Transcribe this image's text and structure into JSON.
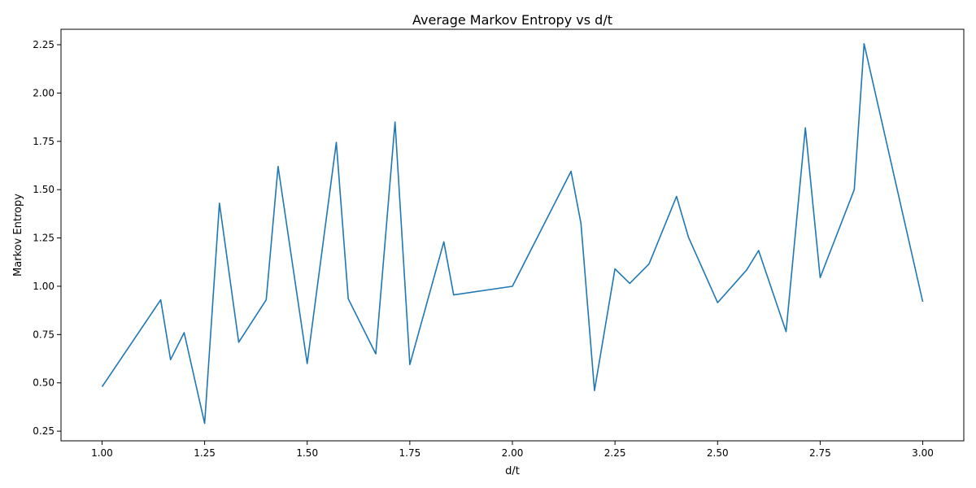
{
  "chart_data": {
    "type": "line",
    "title": "Average Markov Entropy vs d/t",
    "xlabel": "d/t",
    "ylabel": "Markov Entropy",
    "xlim": [
      0.9,
      3.1
    ],
    "ylim": [
      0.2,
      2.33
    ],
    "xticks": [
      1.0,
      1.25,
      1.5,
      1.75,
      2.0,
      2.25,
      2.5,
      2.75,
      3.0
    ],
    "xtick_labels": [
      "1.00",
      "1.25",
      "1.50",
      "1.75",
      "2.00",
      "2.25",
      "2.50",
      "2.75",
      "3.00"
    ],
    "yticks": [
      0.25,
      0.5,
      0.75,
      1.0,
      1.25,
      1.5,
      1.75,
      2.0,
      2.25
    ],
    "ytick_labels": [
      "0.25",
      "0.50",
      "0.75",
      "1.00",
      "1.25",
      "1.50",
      "1.75",
      "2.00",
      "2.25"
    ],
    "grid": false,
    "color": "#1f77b4",
    "series": [
      {
        "x": [
          1.0,
          1.143,
          1.167,
          1.2,
          1.25,
          1.286,
          1.333,
          1.4,
          1.429,
          1.5,
          1.571,
          1.6,
          1.667,
          1.714,
          1.75,
          1.833,
          1.857,
          2.0,
          2.143,
          2.167,
          2.2,
          2.25,
          2.286,
          2.333,
          2.4,
          2.429,
          2.5,
          2.571,
          2.6,
          2.667,
          2.714,
          2.75,
          2.833,
          2.857,
          3.0
        ],
        "y": [
          0.48,
          0.93,
          0.62,
          0.76,
          0.29,
          1.43,
          0.71,
          0.93,
          1.62,
          0.6,
          1.745,
          0.935,
          0.65,
          1.85,
          0.595,
          1.23,
          0.955,
          1.0,
          1.595,
          1.325,
          0.46,
          1.09,
          1.015,
          1.115,
          1.465,
          1.255,
          0.915,
          1.085,
          1.185,
          0.765,
          1.82,
          1.045,
          1.5,
          2.255,
          0.92
        ]
      }
    ]
  }
}
